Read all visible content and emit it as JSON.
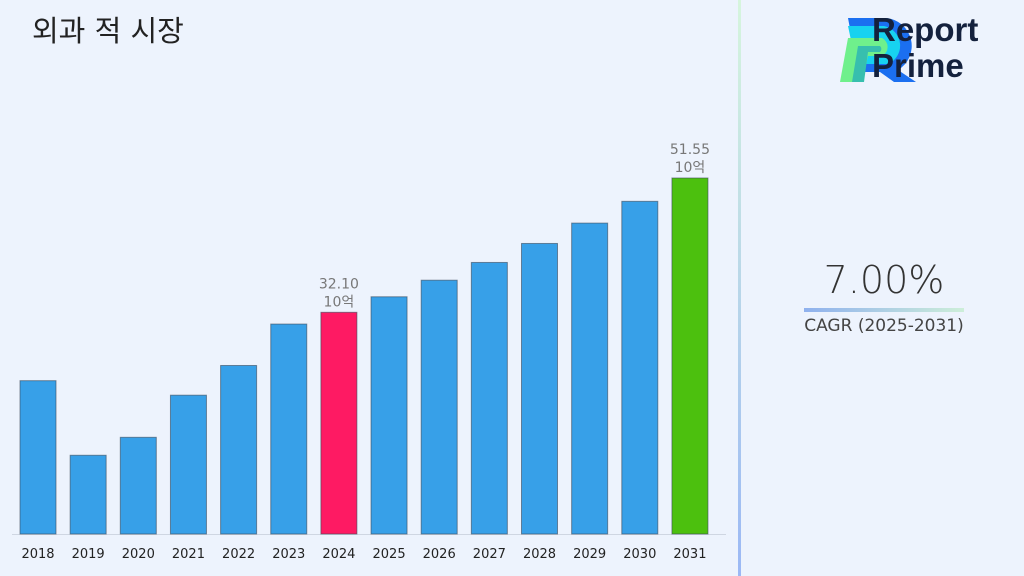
{
  "title": "외과 적 시장",
  "brand": {
    "line1": "Report",
    "line2": "Prime"
  },
  "cagr": {
    "value": "7.00%",
    "label": "CAGR (2025-2031)"
  },
  "chart_data": {
    "type": "bar",
    "title": "외과 적 시장",
    "categories": [
      "2018",
      "2019",
      "2020",
      "2021",
      "2022",
      "2023",
      "2024",
      "2025",
      "2026",
      "2027",
      "2028",
      "2029",
      "2030",
      "2031"
    ],
    "values": [
      22.2,
      11.4,
      14.0,
      20.1,
      24.4,
      30.4,
      32.1,
      34.35,
      36.75,
      39.32,
      42.07,
      45.02,
      48.17,
      51.55
    ],
    "colors": [
      "#37a0e8",
      "#37a0e8",
      "#37a0e8",
      "#37a0e8",
      "#37a0e8",
      "#37a0e8",
      "#fe1a63",
      "#37a0e8",
      "#37a0e8",
      "#37a0e8",
      "#37a0e8",
      "#37a0e8",
      "#37a0e8",
      "#4cc00e"
    ],
    "data_labels": {
      "2024": [
        "32.10",
        "10억"
      ],
      "2031": [
        "51.55",
        "10억"
      ]
    },
    "ylim": [
      0,
      51.55
    ],
    "grid": false,
    "legend": "none"
  }
}
